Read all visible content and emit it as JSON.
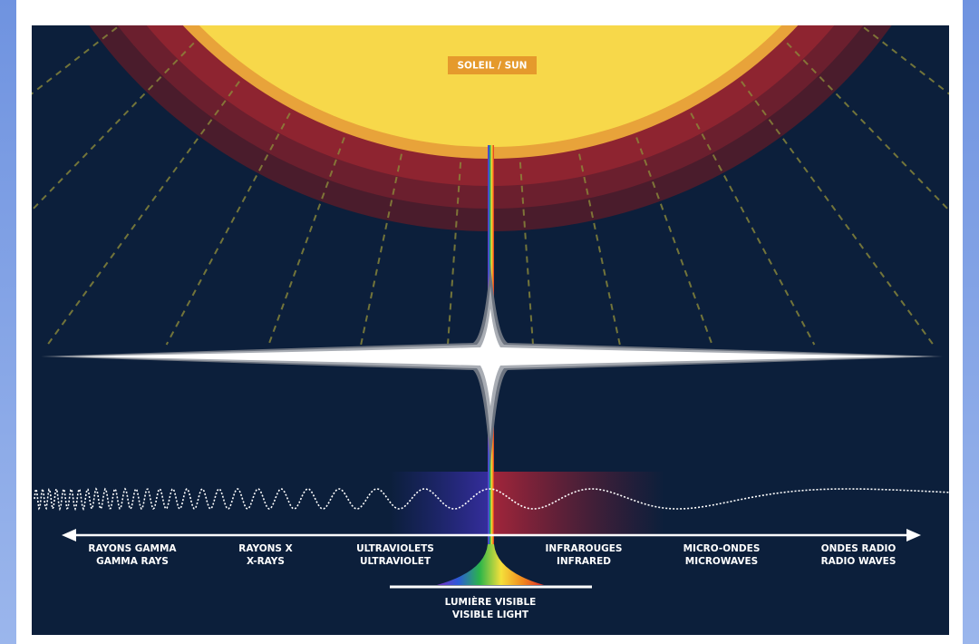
{
  "sun_label": "SOLEIL / SUN",
  "bands": [
    {
      "fr": "RAYONS GAMMA",
      "en": "GAMMA RAYS"
    },
    {
      "fr": "RAYONS X",
      "en": "X-RAYS"
    },
    {
      "fr": "ULTRAVIOLETS",
      "en": "ULTRAVIOLET"
    },
    {
      "fr": "INFRAROUGES",
      "en": "INFRARED"
    },
    {
      "fr": "MICRO-ONDES",
      "en": "MICROWAVES"
    },
    {
      "fr": "ONDES RADIO",
      "en": "RADIO WAVES"
    }
  ],
  "visible": {
    "fr": "LUMIÈRE VISIBLE",
    "en": "VISIBLE LIGHT"
  }
}
